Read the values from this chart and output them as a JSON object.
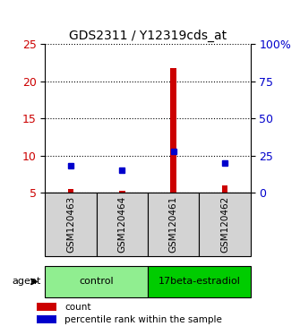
{
  "title": "GDS2311 / Y12319cds_at",
  "samples": [
    "GSM120463",
    "GSM120464",
    "GSM120461",
    "GSM120462"
  ],
  "count_values": [
    5.5,
    5.3,
    21.7,
    6.0
  ],
  "percentile_values": [
    18,
    15,
    28,
    20
  ],
  "left_ylim": [
    5,
    25
  ],
  "left_yticks": [
    5,
    10,
    15,
    20,
    25
  ],
  "right_ylim": [
    0,
    100
  ],
  "right_yticks": [
    0,
    25,
    50,
    75,
    100
  ],
  "right_yticklabels": [
    "0",
    "25",
    "50",
    "75",
    "100%"
  ],
  "groups": [
    {
      "label": "control",
      "samples": [
        0,
        1
      ],
      "color": "#90ee90"
    },
    {
      "label": "17beta-estradiol",
      "samples": [
        2,
        3
      ],
      "color": "#00cc00"
    }
  ],
  "bar_width": 0.12,
  "red_color": "#cc0000",
  "blue_color": "#0000cc",
  "grid_color": "#000000",
  "bg_sample_box": "#d3d3d3",
  "legend_red_label": "count",
  "legend_blue_label": "percentile rank within the sample",
  "agent_label": "agent",
  "left_axis_color": "#cc0000",
  "right_axis_color": "#0000cc"
}
